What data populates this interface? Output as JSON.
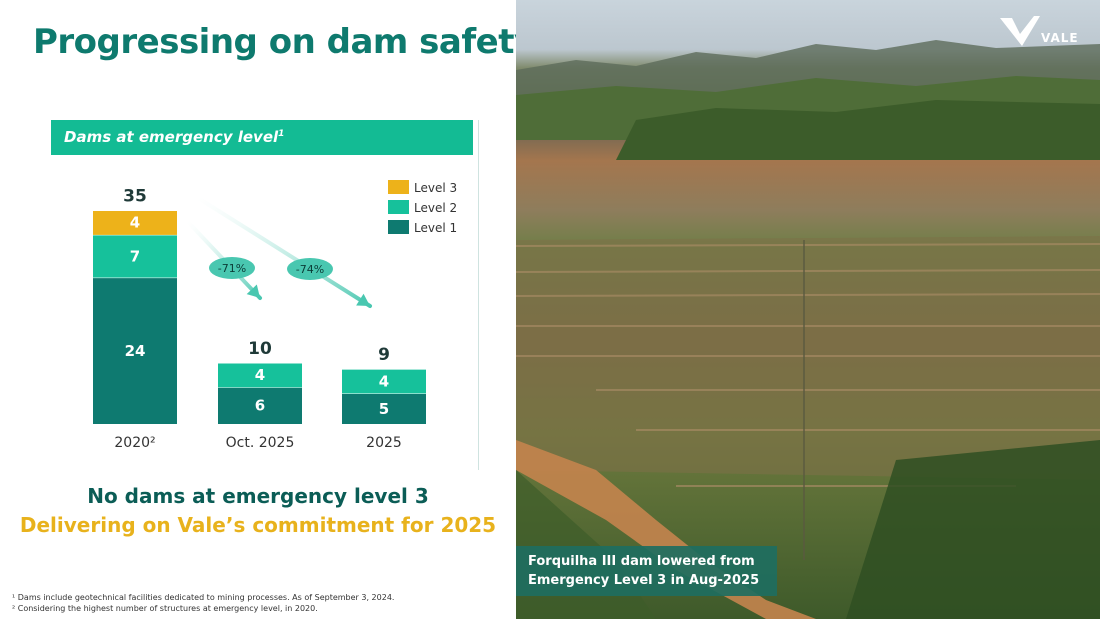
{
  "slide": {
    "title": "Progressing on dam safety",
    "headline_1": "No dams at emergency level 3",
    "headline_2": "Delivering on Vale’s commitment for 2025",
    "footnote_1": "¹ Dams include geotechnical facilities dedicated to mining processes. As of September 3, 2024.",
    "footnote_2": "² Considering the highest number of structures at emergency level, in 2020.",
    "photo_caption_line_1": "Forquilha III dam lowered from",
    "photo_caption_line_2": "Emergency Level 3 in Aug-2025",
    "logo_text": "VALE"
  },
  "chart_data": {
    "type": "bar",
    "stacked": true,
    "title": "Dams at emergency level",
    "title_superscript": "1",
    "categories": [
      "2020²",
      "Oct. 2025",
      "2025"
    ],
    "series": [
      {
        "name": "Level 1",
        "values": [
          24,
          6,
          5
        ],
        "color": "#0e7a70"
      },
      {
        "name": "Level 2",
        "values": [
          7,
          4,
          4
        ],
        "color": "#16c19b"
      },
      {
        "name": "Level 3",
        "values": [
          4,
          0,
          0
        ],
        "color": "#edb21a"
      }
    ],
    "totals": [
      35,
      10,
      9
    ],
    "annotations": [
      "-71%",
      "-74%"
    ],
    "legend_position": "top-right",
    "legend_order": [
      "Level 3",
      "Level 2",
      "Level 1"
    ],
    "ylim": [
      0,
      35
    ],
    "grid": false
  }
}
